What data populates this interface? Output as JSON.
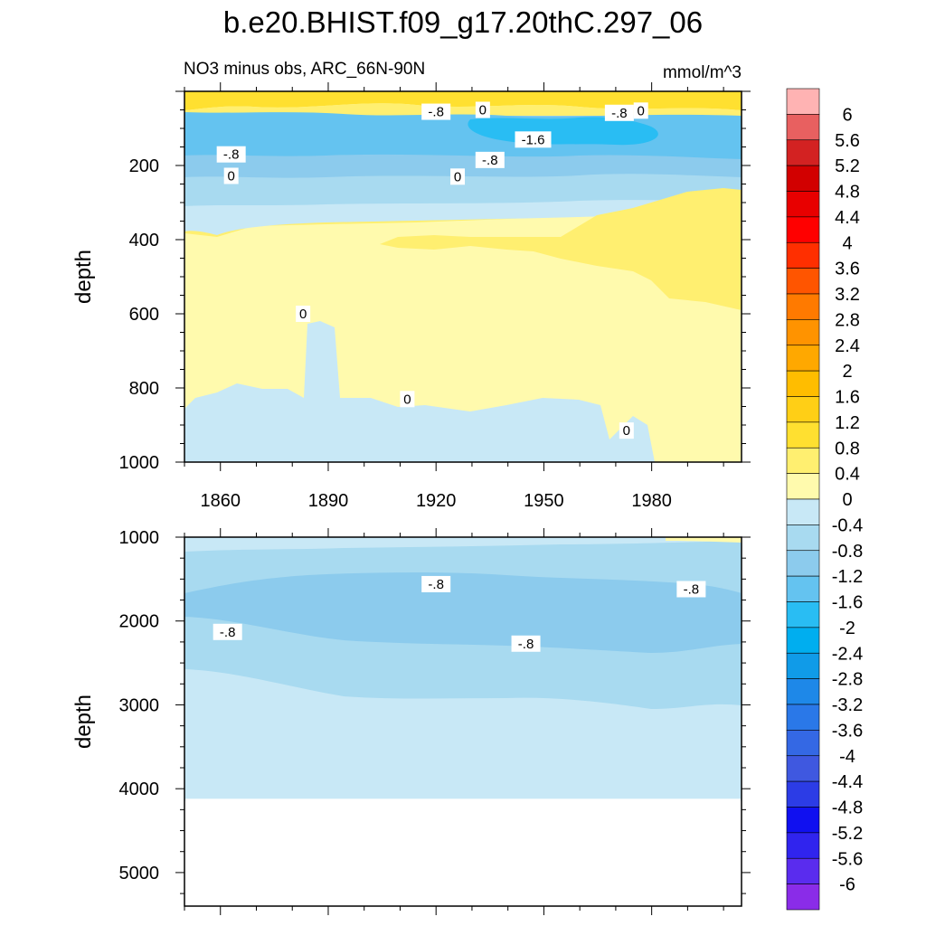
{
  "chart_data": {
    "type": "heatmap",
    "title": "b.e20.BHIST.f09_g17.20thC.297_06",
    "subtitle_left": "NO3 minus obs, ARC_66N-90N",
    "subtitle_right": "mmol/m^3",
    "colorbar": {
      "labels": [
        "6",
        "5.6",
        "5.2",
        "4.8",
        "4.4",
        "4",
        "3.6",
        "3.2",
        "2.8",
        "2.4",
        "2",
        "1.6",
        "1.2",
        "0.8",
        "0.4",
        "0",
        "-0.4",
        "-0.8",
        "-1.2",
        "-1.6",
        "-2",
        "-2.4",
        "-2.8",
        "-3.2",
        "-3.6",
        "-4",
        "-4.4",
        "-4.8",
        "-5.2",
        "-5.6",
        "-6"
      ],
      "colors": [
        "#ffb3b3",
        "#e86060",
        "#d32222",
        "#d20000",
        "#e80000",
        "#ff0000",
        "#ff2f00",
        "#ff5500",
        "#ff7a00",
        "#ff9300",
        "#ffa800",
        "#ffbd00",
        "#ffcf16",
        "#ffe030",
        "#ffef70",
        "#fffaad",
        "#c8e8f6",
        "#a8daf0",
        "#8ccbed",
        "#64c3f0",
        "#29bdf3",
        "#00aeef",
        "#109be8",
        "#1e88e8",
        "#2a78e8",
        "#3468e4",
        "#3f58e0",
        "#2c3ce6",
        "#1010f0",
        "#3024ee",
        "#5a2cee",
        "#8a2ce8"
      ]
    },
    "panels": [
      {
        "name": "upper",
        "ylabel": "depth",
        "ylim": [
          0,
          1000
        ],
        "xlim": [
          1850,
          2005
        ],
        "yticks": [
          "200",
          "400",
          "600",
          "800",
          "1000"
        ],
        "yticks_values": [
          200,
          400,
          600,
          800,
          1000
        ],
        "xticks": [
          "1860",
          "1890",
          "1920",
          "1950",
          "1980"
        ],
        "xticks_values": [
          1860,
          1890,
          1920,
          1950,
          1980
        ],
        "contour_labels": [
          {
            "text": "-.8",
            "x": 1920,
            "y": 55
          },
          {
            "text": "0",
            "x": 1933,
            "y": 50
          },
          {
            "text": "-.8",
            "x": 1971,
            "y": 58
          },
          {
            "text": "0",
            "x": 1977,
            "y": 52
          },
          {
            "text": "-1.6",
            "x": 1947,
            "y": 130
          },
          {
            "text": "-.8",
            "x": 1863,
            "y": 170
          },
          {
            "text": "-.8",
            "x": 1935,
            "y": 185
          },
          {
            "text": "0",
            "x": 1863,
            "y": 228
          },
          {
            "text": "0",
            "x": 1926,
            "y": 230
          },
          {
            "text": "0",
            "x": 1883,
            "y": 600
          },
          {
            "text": "0",
            "x": 1912,
            "y": 830
          },
          {
            "text": "0",
            "x": 1973,
            "y": 915
          }
        ],
        "layers": [
          {
            "value_band": "0 to 0.4",
            "color": "#fffaad"
          },
          {
            "value_band": "0.4 to 0.8",
            "color": "#ffef70"
          },
          {
            "value_band": "0.8 to 1.2",
            "color": "#ffe030"
          },
          {
            "value_band": "0 to -0.4",
            "color": "#c8e8f6"
          },
          {
            "value_band": "-0.4 to -0.8",
            "color": "#a8daf0"
          },
          {
            "value_band": "-0.8 to -1.2",
            "color": "#8ccbed"
          },
          {
            "value_band": "-1.2 to -1.6",
            "color": "#64c3f0"
          },
          {
            "value_band": "-1.6 to -2",
            "color": "#29bdf3"
          }
        ]
      },
      {
        "name": "lower",
        "ylabel": "depth",
        "ylim": [
          1000,
          5400
        ],
        "xlim": [
          1850,
          2005
        ],
        "yticks": [
          "1000",
          "2000",
          "3000",
          "4000",
          "5000"
        ],
        "yticks_values": [
          1000,
          2000,
          3000,
          4000,
          5000
        ],
        "contour_labels": [
          {
            "text": "-.8",
            "x": 1920,
            "y": 1560
          },
          {
            "text": "-.8",
            "x": 1862,
            "y": 2130
          },
          {
            "text": "-.8",
            "x": 1945,
            "y": 2270
          },
          {
            "text": "-.8",
            "x": 1991,
            "y": 1620
          }
        ],
        "data_floor": 4120
      }
    ]
  }
}
